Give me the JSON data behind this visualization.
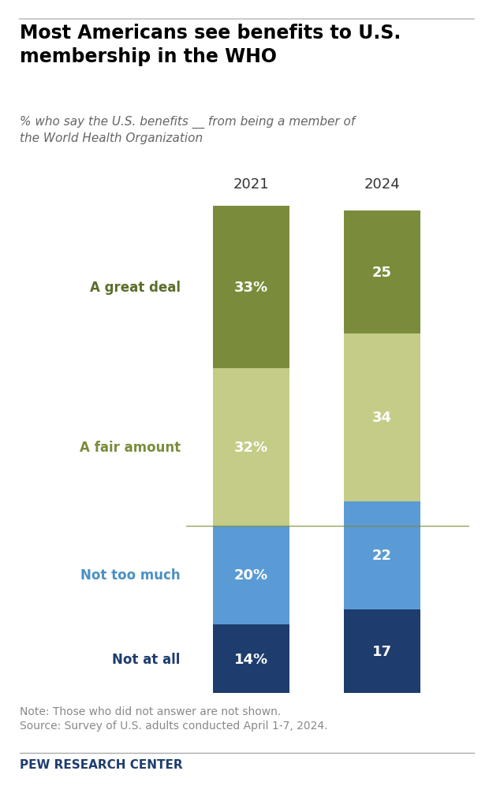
{
  "title": "Most Americans see benefits to U.S.\nmembership in the WHO",
  "subtitle": "% who say the U.S. benefits __ from being a member of\nthe World Health Organization",
  "years": [
    "2021",
    "2024"
  ],
  "categories": [
    "Not at all",
    "Not too much",
    "A fair amount",
    "A great deal"
  ],
  "values_2021": [
    14,
    20,
    32,
    33
  ],
  "values_2024": [
    17,
    22,
    34,
    25
  ],
  "colors": {
    "Not at all": "#1e3d6e",
    "Not too much": "#5b9bd5",
    "A fair amount": "#c5cc87",
    "A great deal": "#7a8c3b"
  },
  "label_colors": {
    "Not at all": "#1e3d6e",
    "Not too much": "#4a90c4",
    "A fair amount": "#7a8c3b",
    "A great deal": "#5a6e2a"
  },
  "note": "Note: Those who did not answer are not shown.\nSource: Survey of U.S. adults conducted April 1-7, 2024.",
  "footer": "PEW RESEARCH CENTER",
  "background_color": "#ffffff",
  "divider_color": "#7a8c3b"
}
